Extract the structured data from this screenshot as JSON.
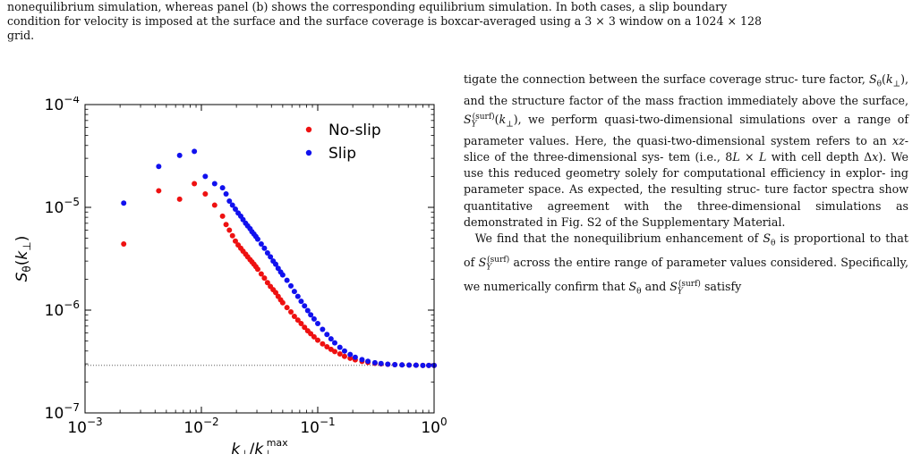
{
  "caption": {
    "line1": "nonequilibrium simulation, whereas panel (b) shows the corresponding equilibrium simulation. In both cases, a slip boundary",
    "line2": "condition for velocity is imposed at the surface and the surface coverage is boxcar-averaged using a 3 × 3 window on a 1024 × 128",
    "line3": "grid."
  },
  "paragraphs": {
    "p1_lines": [
      "tigate the connection between the surface coverage struc-",
      "ture factor, S_θ(k_⊥), and the structure factor of the mass",
      "fraction immediately above the surface, S_Y^(surf)(k_⊥), we",
      "perform quasi-two-dimensional simulations over a range",
      "of parameter values.   Here, the quasi-two-dimensional",
      "system refers to an xz-slice of the three-dimensional sys-",
      "tem (i.e., 8L × L with cell depth Δx). We use this reduced",
      "geometry solely for computational efficiency in explor-",
      "ing parameter space.  As expected, the resulting struc-",
      "ture factor spectra show quantitative agreement with the",
      "three-dimensional simulations as demonstrated in Fig. S2",
      "of the Supplementary Material."
    ],
    "p2_lines": [
      "We find that the nonequilibrium enhancement of S_θ is",
      "proportional to that of S_Y^(surf) across the entire range of",
      "parameter values considered. Specifically, we numerically",
      "confirm that S_θ and S_Y^(surf) satisfy"
    ]
  },
  "chart_data": {
    "type": "scatter",
    "xscale": "log",
    "yscale": "log",
    "xlim": [
      0.001,
      1
    ],
    "ylim": [
      1e-07,
      0.0001
    ],
    "xlabel": "k⊥/k⊥^max",
    "ylabel": "Sθ(k⊥)",
    "x_tick_labels": [
      "10^-3",
      "10^-2",
      "10^-1",
      "10^0"
    ],
    "y_tick_labels": [
      "10^-7",
      "10^-6",
      "10^-5",
      "10^-4"
    ],
    "legend": "top-right",
    "reference_line": {
      "y": 2.9e-07,
      "style": "dotted"
    },
    "series": [
      {
        "name": "No-slip",
        "color": "#ee1111",
        "points": [
          [
            0.00215,
            4.4e-06
          ],
          [
            0.0043,
            1.45e-05
          ],
          [
            0.0065,
            1.2e-05
          ],
          [
            0.0087,
            1.7e-05
          ],
          [
            0.0108,
            1.35e-05
          ],
          [
            0.013,
            1.05e-05
          ],
          [
            0.0152,
            8.2e-06
          ],
          [
            0.0163,
            6.8e-06
          ],
          [
            0.0174,
            6e-06
          ],
          [
            0.0185,
            5.3e-06
          ],
          [
            0.0196,
            4.7e-06
          ],
          [
            0.0207,
            4.3e-06
          ],
          [
            0.0218,
            4e-06
          ],
          [
            0.0228,
            3.75e-06
          ],
          [
            0.024,
            3.5e-06
          ],
          [
            0.025,
            3.3e-06
          ],
          [
            0.0262,
            3.1e-06
          ],
          [
            0.0272,
            2.95e-06
          ],
          [
            0.0283,
            2.8e-06
          ],
          [
            0.0294,
            2.65e-06
          ],
          [
            0.0305,
            2.5e-06
          ],
          [
            0.0327,
            2.25e-06
          ],
          [
            0.0348,
            2.05e-06
          ],
          [
            0.037,
            1.85e-06
          ],
          [
            0.0392,
            1.7e-06
          ],
          [
            0.0414,
            1.58e-06
          ],
          [
            0.0435,
            1.48e-06
          ],
          [
            0.0457,
            1.36e-06
          ],
          [
            0.048,
            1.26e-06
          ],
          [
            0.05,
            1.18e-06
          ],
          [
            0.0544,
            1.06e-06
          ],
          [
            0.0588,
            9.6e-07
          ],
          [
            0.063,
            8.7e-07
          ],
          [
            0.0675,
            8e-07
          ],
          [
            0.072,
            7.4e-07
          ],
          [
            0.077,
            6.8e-07
          ],
          [
            0.082,
            6.3e-07
          ],
          [
            0.087,
            5.9e-07
          ],
          [
            0.093,
            5.5e-07
          ],
          [
            0.1,
            5.1e-07
          ],
          [
            0.11,
            4.7e-07
          ],
          [
            0.12,
            4.4e-07
          ],
          [
            0.13,
            4.15e-07
          ],
          [
            0.14,
            3.95e-07
          ],
          [
            0.155,
            3.75e-07
          ],
          [
            0.17,
            3.55e-07
          ],
          [
            0.19,
            3.4e-07
          ],
          [
            0.21,
            3.28e-07
          ],
          [
            0.24,
            3.17e-07
          ],
          [
            0.27,
            3.1e-07
          ],
          [
            0.31,
            3.04e-07
          ],
          [
            0.35,
            3e-07
          ],
          [
            0.4,
            2.97e-07
          ],
          [
            0.46,
            2.95e-07
          ],
          [
            0.53,
            2.93e-07
          ],
          [
            0.61,
            2.92e-07
          ],
          [
            0.7,
            2.91e-07
          ],
          [
            0.8,
            2.9e-07
          ],
          [
            0.9,
            2.9e-07
          ],
          [
            1.0,
            2.9e-07
          ]
        ]
      },
      {
        "name": "Slip",
        "color": "#1111ee",
        "points": [
          [
            0.00215,
            1.1e-05
          ],
          [
            0.0043,
            2.5e-05
          ],
          [
            0.0065,
            3.2e-05
          ],
          [
            0.0087,
            3.5e-05
          ],
          [
            0.0108,
            2e-05
          ],
          [
            0.013,
            1.7e-05
          ],
          [
            0.0152,
            1.55e-05
          ],
          [
            0.0163,
            1.35e-05
          ],
          [
            0.0174,
            1.15e-05
          ],
          [
            0.0185,
            1.05e-05
          ],
          [
            0.0196,
            9.6e-06
          ],
          [
            0.0207,
            8.8e-06
          ],
          [
            0.0218,
            8.2e-06
          ],
          [
            0.0228,
            7.6e-06
          ],
          [
            0.024,
            7e-06
          ],
          [
            0.025,
            6.6e-06
          ],
          [
            0.0262,
            6.2e-06
          ],
          [
            0.0272,
            5.8e-06
          ],
          [
            0.0283,
            5.5e-06
          ],
          [
            0.0294,
            5.2e-06
          ],
          [
            0.0305,
            4.9e-06
          ],
          [
            0.0327,
            4.4e-06
          ],
          [
            0.0348,
            4e-06
          ],
          [
            0.037,
            3.6e-06
          ],
          [
            0.0392,
            3.3e-06
          ],
          [
            0.0414,
            3e-06
          ],
          [
            0.0435,
            2.8e-06
          ],
          [
            0.0457,
            2.55e-06
          ],
          [
            0.048,
            2.35e-06
          ],
          [
            0.05,
            2.2e-06
          ],
          [
            0.0544,
            1.95e-06
          ],
          [
            0.0588,
            1.72e-06
          ],
          [
            0.063,
            1.52e-06
          ],
          [
            0.0675,
            1.36e-06
          ],
          [
            0.072,
            1.22e-06
          ],
          [
            0.077,
            1.1e-06
          ],
          [
            0.082,
            9.9e-07
          ],
          [
            0.087,
            9e-07
          ],
          [
            0.093,
            8.2e-07
          ],
          [
            0.1,
            7.4e-07
          ],
          [
            0.11,
            6.5e-07
          ],
          [
            0.12,
            5.8e-07
          ],
          [
            0.13,
            5.25e-07
          ],
          [
            0.14,
            4.8e-07
          ],
          [
            0.155,
            4.35e-07
          ],
          [
            0.17,
            4e-07
          ],
          [
            0.19,
            3.7e-07
          ],
          [
            0.21,
            3.48e-07
          ],
          [
            0.24,
            3.3e-07
          ],
          [
            0.27,
            3.18e-07
          ],
          [
            0.31,
            3.08e-07
          ],
          [
            0.35,
            3.02e-07
          ],
          [
            0.4,
            2.98e-07
          ],
          [
            0.46,
            2.95e-07
          ],
          [
            0.53,
            2.93e-07
          ],
          [
            0.61,
            2.92e-07
          ],
          [
            0.7,
            2.91e-07
          ],
          [
            0.8,
            2.9e-07
          ],
          [
            0.9,
            2.9e-07
          ],
          [
            1.0,
            2.9e-07
          ]
        ]
      }
    ]
  }
}
